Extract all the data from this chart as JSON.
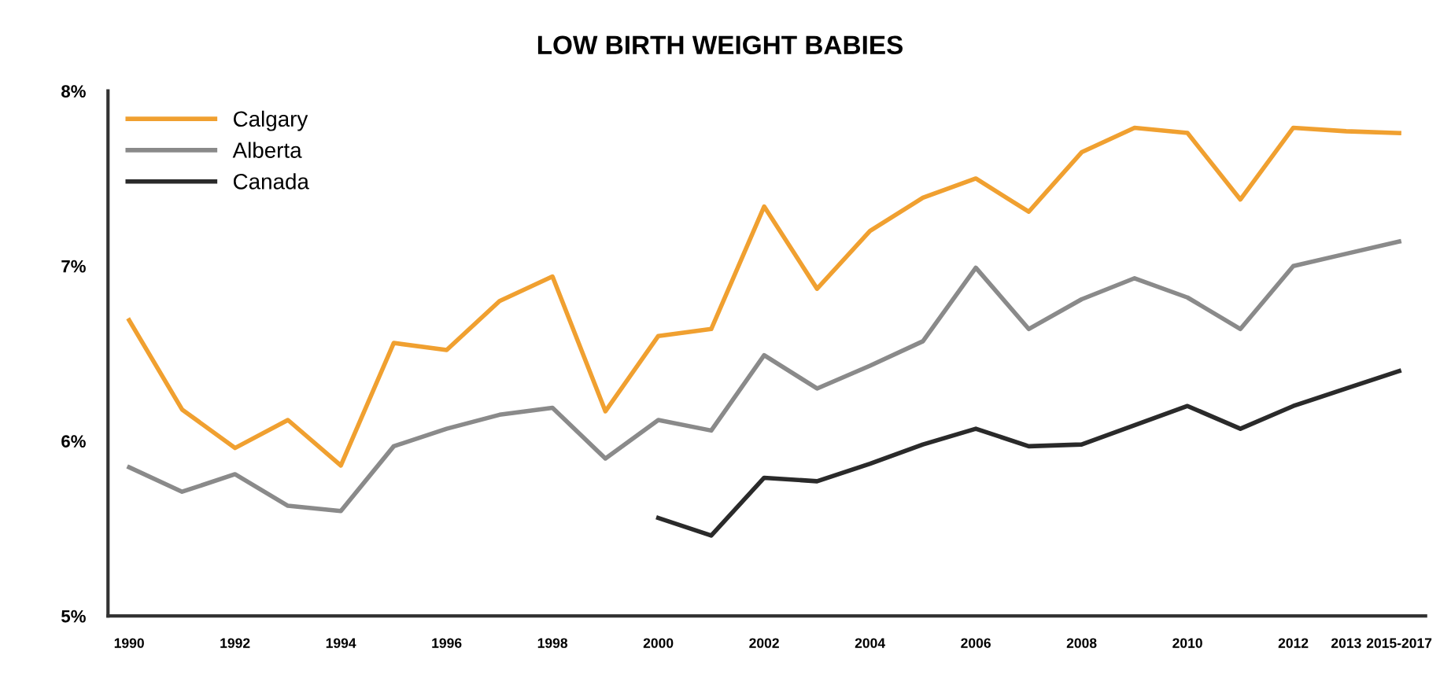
{
  "chart_data": {
    "type": "line",
    "title": "LOW BIRTH WEIGHT BABIES",
    "categories": [
      "1990",
      null,
      "1992",
      null,
      "1994",
      null,
      "1996",
      null,
      "1998",
      null,
      "2000",
      null,
      "2002",
      null,
      "2004",
      null,
      "2006",
      null,
      "2008",
      null,
      "2010",
      null,
      "2012",
      "2013",
      "2015-2017"
    ],
    "series": [
      {
        "name": "Calgary",
        "color": "#f0a030",
        "values": [
          6.69,
          6.18,
          5.96,
          6.12,
          5.86,
          6.56,
          6.52,
          6.8,
          6.94,
          6.17,
          6.6,
          6.64,
          7.34,
          6.87,
          7.2,
          7.39,
          7.5,
          7.31,
          7.65,
          7.79,
          7.76,
          7.38,
          7.79,
          7.77,
          7.76
        ]
      },
      {
        "name": "Alberta",
        "color": "#8a8a8a",
        "values": [
          5.85,
          5.71,
          5.81,
          5.63,
          5.6,
          5.97,
          6.07,
          6.15,
          6.19,
          5.9,
          6.12,
          6.06,
          6.49,
          6.3,
          6.43,
          6.57,
          6.99,
          6.64,
          6.81,
          6.93,
          6.82,
          6.64,
          7.0,
          7.07,
          7.14
        ]
      },
      {
        "name": "Canada",
        "color": "#2a2a2a",
        "values": [
          null,
          null,
          null,
          null,
          null,
          null,
          null,
          null,
          null,
          null,
          5.56,
          5.46,
          5.79,
          5.77,
          5.87,
          5.98,
          6.07,
          5.97,
          5.98,
          6.09,
          6.2,
          6.07,
          6.2,
          6.3,
          6.4
        ]
      }
    ],
    "ylim": [
      5,
      8
    ],
    "yticks": [
      {
        "value": 5,
        "label": "5%"
      },
      {
        "value": 6,
        "label": "6%"
      },
      {
        "value": 7,
        "label": "7%"
      },
      {
        "value": 8,
        "label": "8%"
      }
    ],
    "legend": "top left",
    "grid": false,
    "marker": "none",
    "line_style": "solid"
  }
}
